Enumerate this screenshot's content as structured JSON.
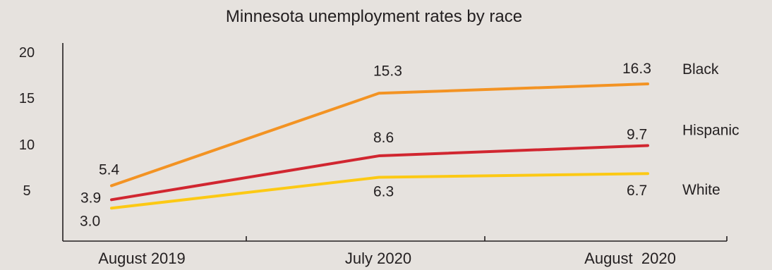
{
  "chart_data": {
    "type": "line",
    "title": "Minnesota unemployment rates by race",
    "xlabel": "",
    "ylabel": "",
    "categories": [
      "August 2019",
      "July 2020",
      "August  2020"
    ],
    "yticks": [
      "20",
      "15",
      "10",
      "5"
    ],
    "ylim": [
      0,
      20
    ],
    "grid": false,
    "series": [
      {
        "name": "Black",
        "values": [
          5.4,
          15.3,
          16.3
        ],
        "labels": [
          "5.4",
          "15.3",
          "16.3"
        ],
        "color": "#f39323"
      },
      {
        "name": "Hispanic",
        "values": [
          3.9,
          8.6,
          9.7
        ],
        "labels": [
          "3.9",
          "8.6",
          "9.7"
        ],
        "color": "#d12630"
      },
      {
        "name": "White",
        "values": [
          3.0,
          6.3,
          6.7
        ],
        "labels": [
          "3.0",
          "6.3",
          "6.7"
        ],
        "color": "#fcc914"
      }
    ]
  }
}
